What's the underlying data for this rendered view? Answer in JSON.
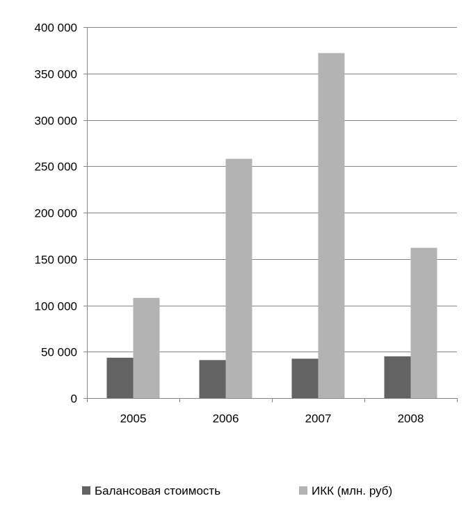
{
  "chart_data": {
    "type": "bar",
    "categories": [
      "2005",
      "2006",
      "2007",
      "2008"
    ],
    "series": [
      {
        "name": "Балансовая стоимость",
        "values": [
          43500,
          41000,
          42500,
          45000
        ]
      },
      {
        "name": "ИКК (млн. руб)",
        "values": [
          108000,
          258000,
          372000,
          162000
        ]
      }
    ],
    "ylim": [
      0,
      400000
    ],
    "yticks": [
      0,
      50000,
      100000,
      150000,
      200000,
      250000,
      300000,
      350000,
      400000
    ],
    "ytick_labels": [
      "0",
      "50 000",
      "100 000",
      "150 000",
      "200 000",
      "250 000",
      "300 000",
      "350 000",
      "400 000"
    ],
    "grid": true,
    "legend_position": "bottom",
    "colors": {
      "series": [
        "#636363",
        "#b3b3b3"
      ],
      "grid": "#868686",
      "axis": "#868686"
    }
  }
}
